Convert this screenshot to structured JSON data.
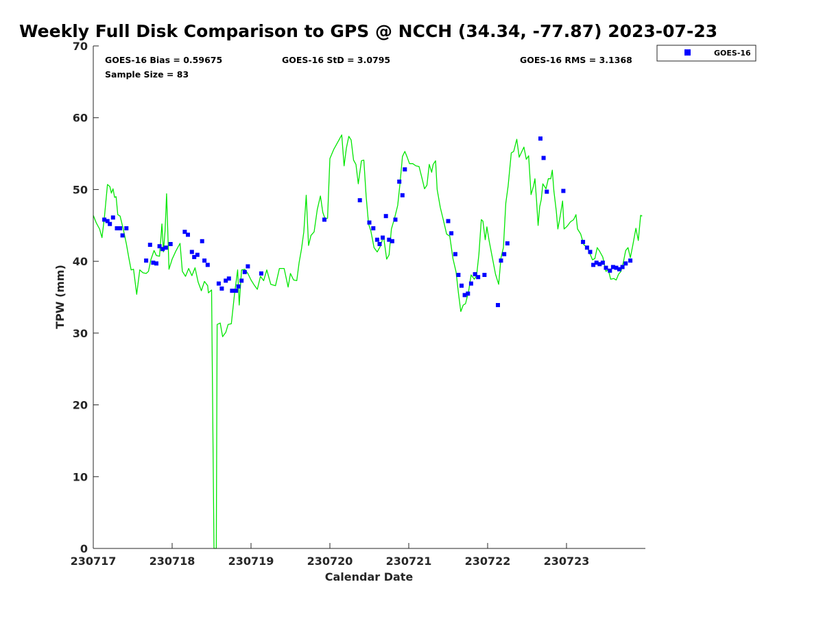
{
  "chart_data": {
    "type": "scatter",
    "title": "Weekly Full Disk Comparison to GPS @ NCCH (34.34, -77.87) 2023-07-23",
    "xlabel": "Calendar Date",
    "ylabel": "TPW (mm)",
    "xlim": [
      0,
      7
    ],
    "ylim": [
      0,
      70
    ],
    "x_ticks": [
      0,
      1,
      2,
      3,
      4,
      5,
      6
    ],
    "x_tick_labels": [
      "230717",
      "230718",
      "230719",
      "230720",
      "230721",
      "230722",
      "230723"
    ],
    "y_ticks": [
      0,
      10,
      20,
      30,
      40,
      50,
      60,
      70
    ],
    "y_tick_labels": [
      "0",
      "10",
      "20",
      "30",
      "40",
      "50",
      "60",
      "70"
    ],
    "grid": false,
    "legend_position": "top-right outside",
    "stats": {
      "bias": "GOES-16 Bias = 0.59675",
      "std": "GOES-16 StD = 3.0795",
      "rms": "GOES-16 RMS = 3.1368",
      "sample": "Sample Size = 83"
    },
    "series": [
      {
        "name": "GOES-16",
        "type": "scatter",
        "color": "#0000ff",
        "marker": "square",
        "points": [
          [
            0.14,
            45.8
          ],
          [
            0.18,
            45.6
          ],
          [
            0.21,
            45.2
          ],
          [
            0.25,
            46.1
          ],
          [
            0.3,
            44.6
          ],
          [
            0.34,
            44.6
          ],
          [
            0.37,
            43.6
          ],
          [
            0.42,
            44.6
          ],
          [
            0.67,
            40.1
          ],
          [
            0.72,
            42.3
          ],
          [
            0.76,
            39.8
          ],
          [
            0.8,
            39.7
          ],
          [
            0.84,
            42.1
          ],
          [
            0.88,
            41.7
          ],
          [
            0.92,
            41.9
          ],
          [
            0.98,
            42.4
          ],
          [
            1.16,
            44.1
          ],
          [
            1.2,
            43.7
          ],
          [
            1.25,
            41.3
          ],
          [
            1.28,
            40.6
          ],
          [
            1.32,
            40.9
          ],
          [
            1.38,
            42.8
          ],
          [
            1.41,
            40.1
          ],
          [
            1.45,
            39.5
          ],
          [
            1.59,
            36.9
          ],
          [
            1.63,
            36.2
          ],
          [
            1.68,
            37.3
          ],
          [
            1.72,
            37.6
          ],
          [
            1.76,
            35.9
          ],
          [
            1.81,
            35.9
          ],
          [
            1.84,
            36.5
          ],
          [
            1.88,
            37.3
          ],
          [
            1.92,
            38.5
          ],
          [
            1.96,
            39.3
          ],
          [
            2.13,
            38.3
          ],
          [
            2.93,
            45.8
          ],
          [
            3.38,
            48.5
          ],
          [
            3.5,
            45.4
          ],
          [
            3.55,
            44.6
          ],
          [
            3.6,
            43.0
          ],
          [
            3.63,
            42.4
          ],
          [
            3.67,
            43.3
          ],
          [
            3.71,
            46.3
          ],
          [
            3.75,
            43.0
          ],
          [
            3.79,
            42.8
          ],
          [
            3.83,
            45.8
          ],
          [
            3.88,
            51.1
          ],
          [
            3.92,
            49.2
          ],
          [
            3.95,
            52.8
          ],
          [
            4.5,
            45.6
          ],
          [
            4.54,
            43.9
          ],
          [
            4.59,
            41.0
          ],
          [
            4.63,
            38.1
          ],
          [
            4.67,
            36.6
          ],
          [
            4.71,
            35.3
          ],
          [
            4.75,
            35.5
          ],
          [
            4.79,
            36.9
          ],
          [
            4.84,
            38.2
          ],
          [
            4.88,
            37.8
          ],
          [
            4.96,
            38.1
          ],
          [
            5.13,
            33.9
          ],
          [
            5.17,
            40.1
          ],
          [
            5.21,
            41.0
          ],
          [
            5.25,
            42.5
          ],
          [
            5.67,
            57.1
          ],
          [
            5.71,
            54.4
          ],
          [
            5.75,
            49.7
          ],
          [
            5.96,
            49.8
          ],
          [
            6.21,
            42.7
          ],
          [
            6.26,
            41.9
          ],
          [
            6.3,
            41.3
          ],
          [
            6.34,
            39.5
          ],
          [
            6.38,
            39.8
          ],
          [
            6.42,
            39.6
          ],
          [
            6.46,
            39.8
          ],
          [
            6.5,
            39.1
          ],
          [
            6.55,
            38.7
          ],
          [
            6.59,
            39.2
          ],
          [
            6.63,
            39.1
          ],
          [
            6.67,
            38.9
          ],
          [
            6.71,
            39.2
          ],
          [
            6.75,
            39.7
          ],
          [
            6.81,
            40.1
          ]
        ]
      },
      {
        "type": "line",
        "color": "#00e600",
        "points": [
          [
            0.0,
            46.4
          ],
          [
            0.04,
            45.3
          ],
          [
            0.08,
            44.5
          ],
          [
            0.11,
            43.3
          ],
          [
            0.14,
            46.0
          ],
          [
            0.18,
            50.7
          ],
          [
            0.21,
            50.4
          ],
          [
            0.23,
            49.5
          ],
          [
            0.25,
            50.1
          ],
          [
            0.27,
            48.9
          ],
          [
            0.29,
            49.0
          ],
          [
            0.31,
            46.5
          ],
          [
            0.34,
            46.3
          ],
          [
            0.38,
            44.5
          ],
          [
            0.42,
            42.4
          ],
          [
            0.45,
            40.5
          ],
          [
            0.48,
            38.8
          ],
          [
            0.51,
            38.9
          ],
          [
            0.55,
            35.4
          ],
          [
            0.59,
            38.8
          ],
          [
            0.63,
            38.4
          ],
          [
            0.67,
            38.3
          ],
          [
            0.7,
            38.6
          ],
          [
            0.73,
            40.2
          ],
          [
            0.77,
            41.5
          ],
          [
            0.8,
            40.8
          ],
          [
            0.84,
            40.7
          ],
          [
            0.87,
            45.2
          ],
          [
            0.89,
            41.3
          ],
          [
            0.91,
            44.3
          ],
          [
            0.93,
            49.4
          ],
          [
            0.96,
            38.9
          ],
          [
            1.0,
            40.3
          ],
          [
            1.05,
            41.5
          ],
          [
            1.1,
            42.5
          ],
          [
            1.13,
            38.6
          ],
          [
            1.17,
            37.9
          ],
          [
            1.21,
            39.0
          ],
          [
            1.25,
            38.0
          ],
          [
            1.29,
            39.1
          ],
          [
            1.33,
            37.1
          ],
          [
            1.37,
            35.9
          ],
          [
            1.41,
            37.2
          ],
          [
            1.45,
            36.6
          ],
          [
            1.46,
            35.6
          ],
          [
            1.5,
            36.0
          ],
          [
            1.53,
            0.0
          ],
          [
            1.56,
            0.0
          ],
          [
            1.57,
            31.2
          ],
          [
            1.61,
            31.4
          ],
          [
            1.64,
            29.5
          ],
          [
            1.68,
            30.1
          ],
          [
            1.71,
            31.2
          ],
          [
            1.75,
            31.3
          ],
          [
            1.79,
            35.4
          ],
          [
            1.83,
            38.8
          ],
          [
            1.85,
            33.9
          ],
          [
            1.88,
            38.8
          ],
          [
            1.92,
            38.9
          ],
          [
            1.96,
            38.3
          ],
          [
            2.0,
            37.4
          ],
          [
            2.04,
            36.7
          ],
          [
            2.08,
            36.1
          ],
          [
            2.12,
            37.9
          ],
          [
            2.16,
            37.3
          ],
          [
            2.2,
            38.8
          ],
          [
            2.25,
            36.8
          ],
          [
            2.31,
            36.6
          ],
          [
            2.36,
            39.0
          ],
          [
            2.42,
            39.0
          ],
          [
            2.47,
            36.4
          ],
          [
            2.5,
            38.3
          ],
          [
            2.54,
            37.4
          ],
          [
            2.58,
            37.3
          ],
          [
            2.61,
            39.8
          ],
          [
            2.64,
            41.7
          ],
          [
            2.67,
            44.1
          ],
          [
            2.7,
            49.2
          ],
          [
            2.73,
            42.2
          ],
          [
            2.76,
            43.6
          ],
          [
            2.8,
            44.1
          ],
          [
            2.84,
            47.2
          ],
          [
            2.88,
            49.1
          ],
          [
            2.91,
            46.8
          ],
          [
            2.94,
            45.9
          ],
          [
            2.97,
            46.0
          ],
          [
            3.0,
            54.3
          ],
          [
            3.05,
            55.6
          ],
          [
            3.1,
            56.6
          ],
          [
            3.15,
            57.6
          ],
          [
            3.18,
            53.3
          ],
          [
            3.21,
            55.8
          ],
          [
            3.24,
            57.4
          ],
          [
            3.27,
            56.9
          ],
          [
            3.3,
            54.1
          ],
          [
            3.33,
            53.5
          ],
          [
            3.36,
            50.8
          ],
          [
            3.4,
            54.0
          ],
          [
            3.43,
            54.1
          ],
          [
            3.46,
            49.0
          ],
          [
            3.49,
            45.2
          ],
          [
            3.52,
            44.2
          ],
          [
            3.56,
            41.9
          ],
          [
            3.6,
            41.3
          ],
          [
            3.64,
            42.1
          ],
          [
            3.68,
            43.5
          ],
          [
            3.72,
            40.3
          ],
          [
            3.75,
            40.9
          ],
          [
            3.78,
            44.5
          ],
          [
            3.82,
            46.0
          ],
          [
            3.86,
            47.8
          ],
          [
            3.89,
            51.0
          ],
          [
            3.92,
            54.6
          ],
          [
            3.95,
            55.3
          ],
          [
            3.98,
            54.5
          ],
          [
            4.01,
            53.6
          ],
          [
            4.05,
            53.6
          ],
          [
            4.09,
            53.3
          ],
          [
            4.13,
            53.2
          ],
          [
            4.17,
            51.5
          ],
          [
            4.2,
            50.1
          ],
          [
            4.23,
            50.6
          ],
          [
            4.26,
            53.5
          ],
          [
            4.29,
            52.4
          ],
          [
            4.31,
            53.5
          ],
          [
            4.34,
            54.0
          ],
          [
            4.36,
            50.0
          ],
          [
            4.4,
            47.5
          ],
          [
            4.44,
            45.7
          ],
          [
            4.48,
            43.8
          ],
          [
            4.52,
            43.5
          ],
          [
            4.56,
            40.4
          ],
          [
            4.6,
            38.5
          ],
          [
            4.63,
            35.6
          ],
          [
            4.66,
            33.0
          ],
          [
            4.69,
            33.9
          ],
          [
            4.72,
            34.1
          ],
          [
            4.76,
            35.9
          ],
          [
            4.79,
            38.1
          ],
          [
            4.83,
            37.5
          ],
          [
            4.86,
            38.0
          ],
          [
            4.89,
            41.0
          ],
          [
            4.92,
            45.8
          ],
          [
            4.94,
            45.6
          ],
          [
            4.97,
            43.0
          ],
          [
            4.99,
            44.8
          ],
          [
            5.02,
            42.8
          ],
          [
            5.06,
            40.5
          ],
          [
            5.1,
            38.2
          ],
          [
            5.14,
            36.8
          ],
          [
            5.17,
            40.5
          ],
          [
            5.2,
            41.9
          ],
          [
            5.23,
            48.1
          ],
          [
            5.26,
            50.5
          ],
          [
            5.3,
            55.1
          ],
          [
            5.33,
            55.3
          ],
          [
            5.37,
            57.0
          ],
          [
            5.4,
            54.5
          ],
          [
            5.43,
            55.2
          ],
          [
            5.46,
            55.9
          ],
          [
            5.49,
            54.2
          ],
          [
            5.52,
            54.7
          ],
          [
            5.55,
            49.3
          ],
          [
            5.58,
            50.4
          ],
          [
            5.6,
            51.5
          ],
          [
            5.62,
            48.5
          ],
          [
            5.64,
            45.0
          ],
          [
            5.66,
            47.6
          ],
          [
            5.68,
            48.6
          ],
          [
            5.7,
            50.8
          ],
          [
            5.74,
            50.1
          ],
          [
            5.77,
            51.5
          ],
          [
            5.8,
            51.5
          ],
          [
            5.82,
            52.7
          ],
          [
            5.84,
            49.8
          ],
          [
            5.87,
            47.0
          ],
          [
            5.89,
            44.5
          ],
          [
            5.92,
            46.3
          ],
          [
            5.95,
            48.4
          ],
          [
            5.97,
            44.5
          ],
          [
            6.01,
            44.9
          ],
          [
            6.05,
            45.5
          ],
          [
            6.09,
            45.8
          ],
          [
            6.12,
            46.5
          ],
          [
            6.14,
            44.5
          ],
          [
            6.18,
            43.8
          ],
          [
            6.22,
            42.3
          ],
          [
            6.26,
            42.0
          ],
          [
            6.3,
            41.0
          ],
          [
            6.33,
            40.2
          ],
          [
            6.36,
            40.4
          ],
          [
            6.39,
            41.9
          ],
          [
            6.42,
            41.4
          ],
          [
            6.46,
            40.6
          ],
          [
            6.5,
            38.6
          ],
          [
            6.53,
            38.8
          ],
          [
            6.56,
            37.5
          ],
          [
            6.6,
            37.6
          ],
          [
            6.63,
            37.4
          ],
          [
            6.66,
            38.2
          ],
          [
            6.69,
            38.6
          ],
          [
            6.72,
            39.8
          ],
          [
            6.75,
            41.5
          ],
          [
            6.78,
            41.9
          ],
          [
            6.81,
            40.5
          ],
          [
            6.84,
            42.2
          ],
          [
            6.88,
            44.6
          ],
          [
            6.91,
            42.9
          ],
          [
            6.94,
            46.4
          ],
          [
            6.96,
            46.3
          ]
        ]
      }
    ]
  }
}
